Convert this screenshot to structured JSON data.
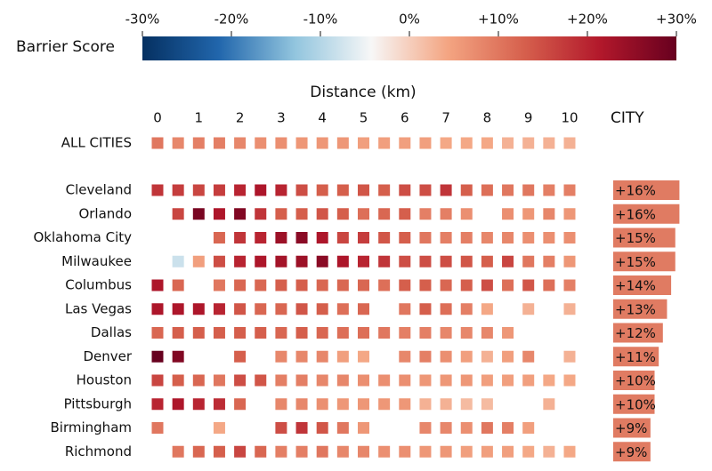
{
  "chart_data": {
    "type": "heatmap",
    "colorbar_label": "Barrier Score",
    "zlim": [
      -30,
      30
    ],
    "zticks": [
      {
        "value": -30,
        "label": "-30%"
      },
      {
        "value": -20,
        "label": "-20%"
      },
      {
        "value": -10,
        "label": "-10%"
      },
      {
        "value": 0,
        "label": "0%"
      },
      {
        "value": 10,
        "label": "+10%"
      },
      {
        "value": 20,
        "label": "+20%"
      },
      {
        "value": 30,
        "label": "+30%"
      }
    ],
    "colorscale": [
      "#053061",
      "#2166ac",
      "#92c5de",
      "#f7f7f7",
      "#f4a582",
      "#d6604d",
      "#b2182b",
      "#67001f"
    ],
    "xlabel": "Distance (km)",
    "xlim": [
      0,
      10
    ],
    "xticks": [
      0,
      1,
      2,
      3,
      4,
      5,
      6,
      7,
      8,
      9,
      10
    ],
    "x": [
      0,
      0.5,
      1,
      1.5,
      2,
      2.5,
      3,
      3.5,
      4,
      4.5,
      5,
      5.5,
      6,
      6.5,
      7,
      7.5,
      8,
      8.5,
      9,
      9.5,
      10
    ],
    "score_header": "CITY",
    "score_color": "#e07b62",
    "overall": {
      "name": "ALL CITIES",
      "values": [
        10,
        8,
        9,
        9,
        8,
        7,
        7,
        6,
        6,
        6,
        5,
        5,
        5,
        5,
        4,
        4,
        4,
        3,
        3,
        3,
        3
      ]
    },
    "rows": [
      {
        "name": "Cleveland",
        "score": 16,
        "score_label": "+16%",
        "values": [
          18,
          17,
          16,
          17,
          20,
          22,
          20,
          15,
          13,
          13,
          14,
          13,
          15,
          15,
          18,
          13,
          11,
          10,
          10,
          9,
          9
        ]
      },
      {
        "name": "Orlando",
        "score": 16,
        "score_label": "+16%",
        "values": [
          null,
          16,
          28,
          22,
          27,
          18,
          13,
          13,
          14,
          13,
          11,
          12,
          13,
          9,
          9,
          7,
          null,
          7,
          6,
          8,
          6
        ]
      },
      {
        "name": "Oklahoma City",
        "score": 15,
        "score_label": "+15%",
        "values": [
          null,
          null,
          null,
          12,
          18,
          20,
          24,
          26,
          22,
          16,
          17,
          14,
          13,
          10,
          9,
          9,
          8,
          8,
          7,
          7,
          7
        ]
      },
      {
        "name": "Milwaukee",
        "score": 15,
        "score_label": "+15%",
        "values": [
          null,
          -8,
          5,
          15,
          20,
          22,
          23,
          24,
          26,
          22,
          20,
          18,
          15,
          15,
          15,
          14,
          13,
          16,
          10,
          9,
          6
        ]
      },
      {
        "name": "Columbus",
        "score": 14,
        "score_label": "+14%",
        "values": [
          22,
          12,
          null,
          10,
          12,
          12,
          13,
          13,
          12,
          12,
          12,
          11,
          13,
          13,
          12,
          13,
          15,
          11,
          14,
          11,
          9
        ]
      },
      {
        "name": "Las Vegas",
        "score": 13,
        "score_label": "+13%",
        "values": [
          22,
          22,
          22,
          20,
          14,
          12,
          12,
          14,
          13,
          11,
          12,
          null,
          10,
          13,
          11,
          9,
          4,
          null,
          3,
          null,
          3
        ]
      },
      {
        "name": "Dallas",
        "score": 12,
        "score_label": "+12%",
        "values": [
          12,
          13,
          13,
          13,
          13,
          13,
          12,
          13,
          12,
          11,
          11,
          10,
          9,
          9,
          8,
          8,
          8,
          6,
          null,
          null,
          null
        ]
      },
      {
        "name": "Denver",
        "score": 11,
        "score_label": "+11%",
        "values": [
          32,
          27,
          null,
          null,
          13,
          null,
          8,
          8,
          8,
          5,
          4,
          null,
          8,
          9,
          7,
          5,
          3,
          5,
          8,
          null,
          3
        ]
      },
      {
        "name": "Houston",
        "score": 10,
        "score_label": "+10%",
        "values": [
          16,
          13,
          12,
          10,
          15,
          14,
          9,
          9,
          8,
          8,
          7,
          7,
          7,
          6,
          6,
          6,
          5,
          5,
          5,
          4,
          4
        ]
      },
      {
        "name": "Pittsburgh",
        "score": 10,
        "score_label": "+10%",
        "values": [
          20,
          22,
          20,
          19,
          12,
          null,
          8,
          8,
          7,
          6,
          6,
          6,
          6,
          3,
          3,
          2,
          2,
          null,
          null,
          3,
          null
        ]
      },
      {
        "name": "Birmingham",
        "score": 9,
        "score_label": "+9%",
        "values": [
          10,
          null,
          null,
          4,
          null,
          null,
          15,
          18,
          14,
          10,
          6,
          null,
          null,
          8,
          8,
          7,
          10,
          9,
          5,
          null,
          null
        ]
      },
      {
        "name": "Richmond",
        "score": 9,
        "score_label": "+9%",
        "values": [
          null,
          10,
          12,
          13,
          16,
          12,
          9,
          9,
          10,
          8,
          8,
          7,
          7,
          6,
          6,
          5,
          5,
          5,
          4,
          3,
          4
        ]
      }
    ]
  }
}
